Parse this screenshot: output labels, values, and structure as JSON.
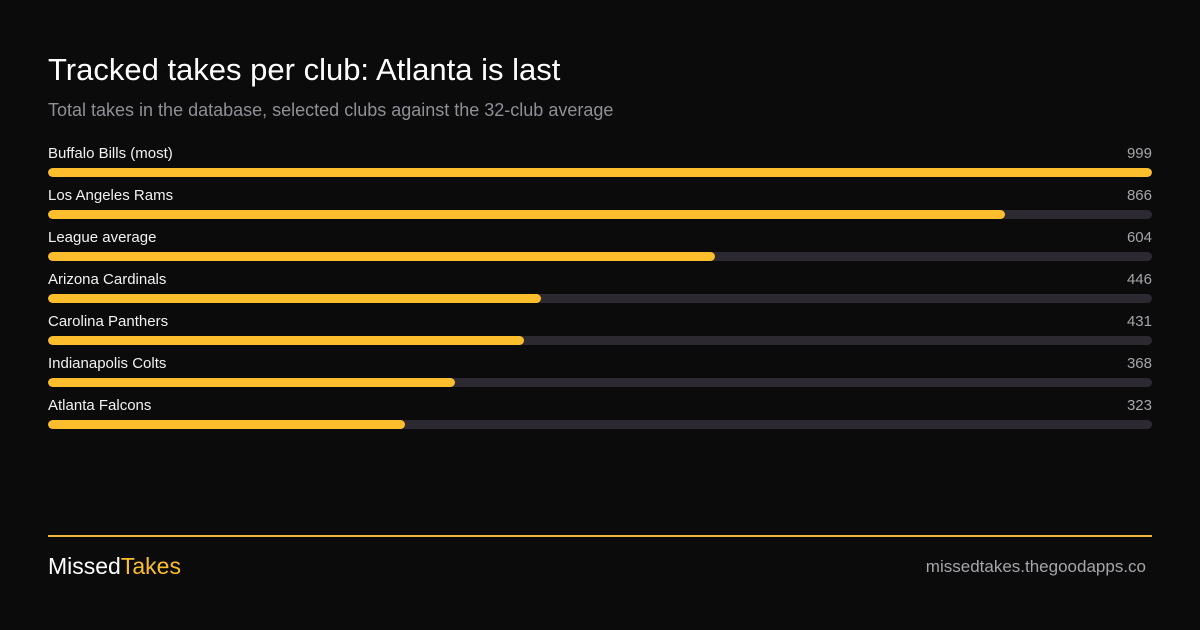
{
  "header": {
    "title": "Tracked takes per club: Atlanta is last",
    "subtitle": "Total takes in the database, selected clubs against the 32-club average"
  },
  "chart_data": {
    "type": "bar",
    "orientation": "horizontal",
    "categories": [
      "Buffalo Bills (most)",
      "Los Angeles Rams",
      "League average",
      "Arizona Cardinals",
      "Carolina Panthers",
      "Indianapolis Colts",
      "Atlanta Falcons"
    ],
    "values": [
      999,
      866,
      604,
      446,
      431,
      368,
      323
    ],
    "value_labels": [
      "999",
      "866",
      "604",
      "446",
      "431",
      "368",
      "323"
    ],
    "xlim": [
      0,
      999
    ],
    "grid": false,
    "legend": "none"
  },
  "footer": {
    "brand_part1": "Missed",
    "brand_part2": "Takes",
    "site": "missedtakes.thegoodapps.co"
  },
  "colors": {
    "background": "#0b0b0b",
    "bar_fill": "#fdbe2d",
    "bar_track": "#2c2a30",
    "divider": "#f0b53c"
  }
}
